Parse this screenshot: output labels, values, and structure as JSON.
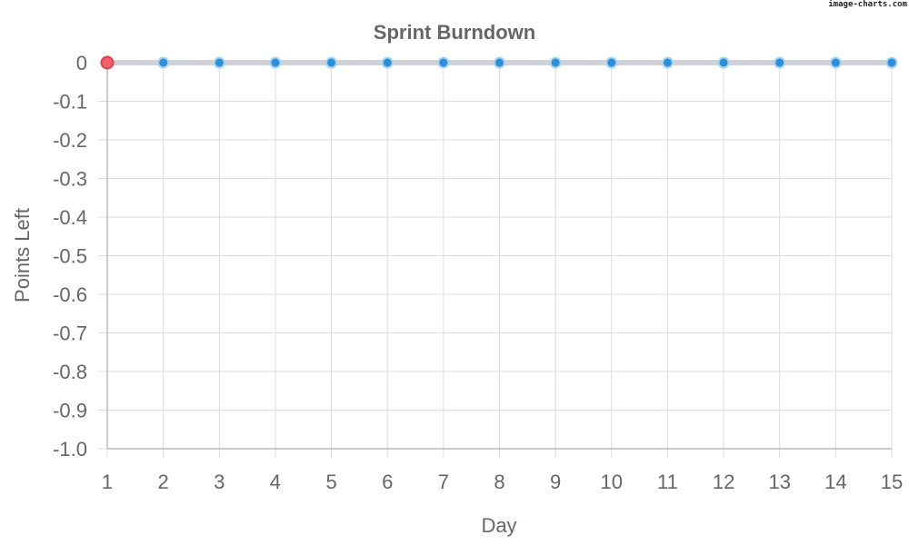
{
  "watermark": "image-charts.com",
  "chart_data": {
    "type": "line",
    "title": "Sprint Burndown",
    "xlabel": "Day",
    "ylabel": "Points Left",
    "x": [
      1,
      2,
      3,
      4,
      5,
      6,
      7,
      8,
      9,
      10,
      11,
      12,
      13,
      14,
      15
    ],
    "y_ticks": [
      "0",
      "-0.1",
      "-0.2",
      "-0.3",
      "-0.4",
      "-0.5",
      "-0.6",
      "-0.7",
      "-0.8",
      "-0.9",
      "-1.0"
    ],
    "ylim": [
      -1.0,
      0
    ],
    "grid": true,
    "series": [
      {
        "values": [
          0,
          0,
          0,
          0,
          0,
          0,
          0,
          0,
          0,
          0,
          0,
          0,
          0,
          0,
          0
        ]
      }
    ],
    "colors": {
      "line": "#cfd3d8",
      "point": "#2d8fd8",
      "point_stroke": "#a9d3f2",
      "first_point": "#f4606e",
      "first_point_stroke": "#d9434f",
      "grid": "#dddddd",
      "axis": "#bbbbbb"
    }
  }
}
